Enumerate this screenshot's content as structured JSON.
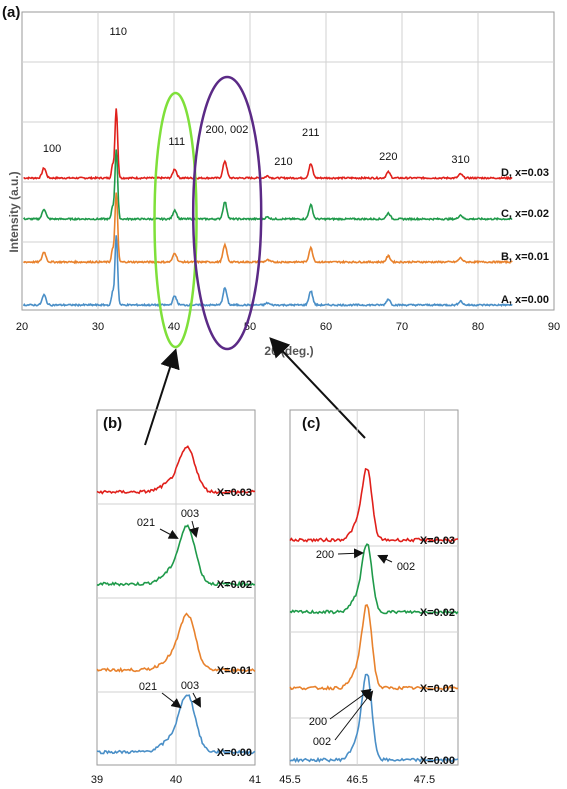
{
  "chart_data": [
    {
      "panel": "(a)",
      "type": "line",
      "xlabel": "2θ (deg.)",
      "ylabel": "Intensity (a.u.)",
      "xlim": [
        20,
        90
      ],
      "xticks": [
        20,
        30,
        40,
        50,
        60,
        70,
        80,
        90
      ],
      "grid": true,
      "peaks": [
        {
          "pos": 22.9,
          "h": 10
        },
        {
          "pos": 32.4,
          "h": 70
        },
        {
          "pos": 40.1,
          "h": 9
        },
        {
          "pos": 46.7,
          "h": 17
        },
        {
          "pos": 52.3,
          "h": 2
        },
        {
          "pos": 58.0,
          "h": 14
        },
        {
          "pos": 68.2,
          "h": 6
        },
        {
          "pos": 77.7,
          "h": 4
        }
      ],
      "series": [
        {
          "name": "D, x=0.03",
          "color": "#e0201b"
        },
        {
          "name": "C, x=0.02",
          "color": "#1f9a4a"
        },
        {
          "name": "B, x=0.01",
          "color": "#e8822d"
        },
        {
          "name": "A, x=0.00",
          "color": "#4a8fc7"
        }
      ],
      "annotations": [
        {
          "text": "100",
          "x": 22.9
        },
        {
          "text": "110",
          "x": 32.4
        },
        {
          "text": "111",
          "x": 40.1
        },
        {
          "text": "200, 002",
          "x": 46.7
        },
        {
          "text": "210",
          "x": 52.3
        },
        {
          "text": "211",
          "x": 58.0
        },
        {
          "text": "220",
          "x": 68.2
        },
        {
          "text": "310",
          "x": 77.7
        }
      ],
      "highlights": [
        {
          "center_x": 40.2,
          "color": "#7fe03a"
        },
        {
          "center_x": 47.0,
          "color": "#5b2a86"
        }
      ]
    },
    {
      "panel": "(b)",
      "type": "line",
      "xlim": [
        39,
        41
      ],
      "xticks": [
        "39",
        "40",
        "41"
      ],
      "grid": true,
      "peak_center": 40.15,
      "series": [
        {
          "name": "X=0.03",
          "color": "#e0201b"
        },
        {
          "name": "X=0.02",
          "color": "#1f9a4a"
        },
        {
          "name": "X=0.01",
          "color": "#e8822d"
        },
        {
          "name": "X=0.00",
          "color": "#4a8fc7"
        }
      ],
      "annotations": [
        {
          "series": "X=0.02",
          "texts": [
            "021",
            "003"
          ]
        },
        {
          "series": "X=0.00",
          "texts": [
            "021",
            "003"
          ]
        }
      ]
    },
    {
      "panel": "(c)",
      "type": "line",
      "xlim": [
        45.5,
        48
      ],
      "xticks": [
        "45.5",
        "46.5",
        "47.5"
      ],
      "grid": true,
      "peak_center": 46.65,
      "series": [
        {
          "name": "X=0.03",
          "color": "#e0201b"
        },
        {
          "name": "X=0.02",
          "color": "#1f9a4a"
        },
        {
          "name": "X=0.01",
          "color": "#e8822d"
        },
        {
          "name": "X=0.00",
          "color": "#4a8fc7"
        }
      ],
      "annotations": [
        {
          "series": "X=0.02",
          "texts": [
            "200",
            "002"
          ]
        },
        {
          "series": "X=0.00",
          "texts": [
            "200",
            "002"
          ]
        }
      ]
    }
  ]
}
